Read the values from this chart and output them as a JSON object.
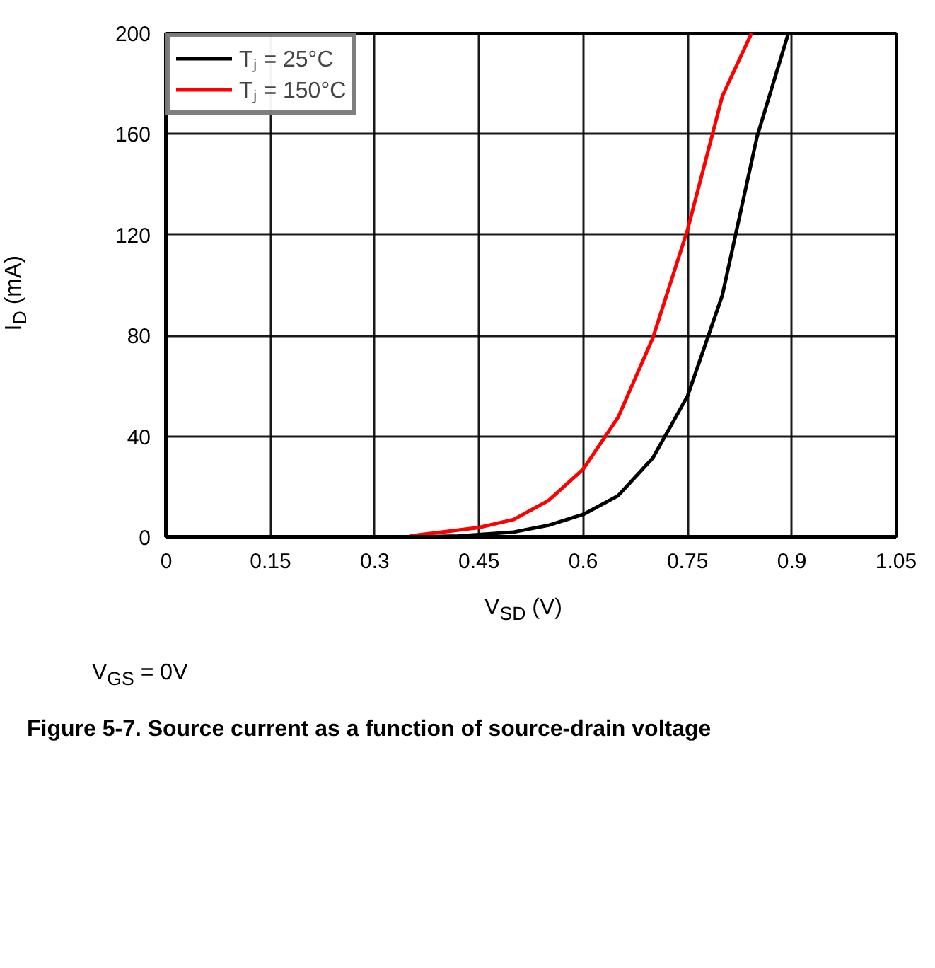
{
  "chart_data": {
    "type": "line",
    "xlabel": "V$_{SD}$ (V)",
    "ylabel": "I$_{D}$ (mA)",
    "series": [
      {
        "name": "Tⱼ = 25°C",
        "color": "#000000",
        "x": [
          0.35,
          0.42,
          0.5,
          0.55,
          0.6,
          0.65,
          0.7,
          0.75,
          0.8,
          0.85,
          0.895
        ],
        "values": [
          0,
          0.4,
          2,
          4.7,
          9,
          16.4,
          31.4,
          56,
          96,
          159,
          200
        ]
      },
      {
        "name": "Tⱼ = 150°C",
        "color": "#ff0000",
        "x": [
          0.35,
          0.45,
          0.5,
          0.55,
          0.6,
          0.65,
          0.7,
          0.75,
          0.8,
          0.842
        ],
        "values": [
          0.4,
          3.8,
          7,
          14.5,
          27,
          47.5,
          79,
          122,
          175,
          200
        ]
      }
    ],
    "xlim": [
      0,
      1.05
    ],
    "xticks": [
      0,
      0.15,
      0.3,
      0.45,
      0.6,
      0.75,
      0.9,
      1.05
    ],
    "ylim": [
      0,
      200
    ],
    "yticks": [
      0,
      40,
      80,
      120,
      160,
      200
    ],
    "grid": true,
    "legend": "top left",
    "marker": "none",
    "line_style": "solid",
    "annotations": [
      "V$_{GS}$ = 0V",
      "Figure 5-7. Source current as a function of source-drain voltage"
    ]
  }
}
